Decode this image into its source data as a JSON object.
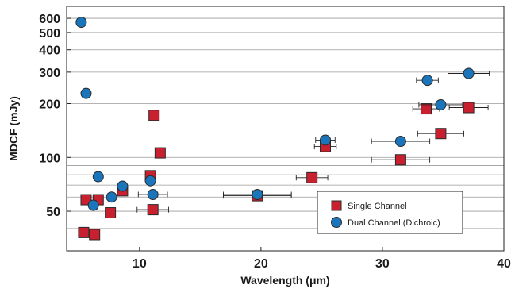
{
  "chart_data": {
    "type": "scatter",
    "title": "",
    "xlabel": "Wavelength (μm)",
    "ylabel": "MDCF (mJy)",
    "xlim": [
      4,
      40
    ],
    "ylim": [
      30,
      700
    ],
    "y_scale": "log",
    "grid": "horizontal",
    "x_ticks": [
      10,
      20,
      30,
      40
    ],
    "y_ticks": [
      50,
      100,
      200,
      300,
      400,
      500,
      600
    ],
    "y_minor_gridlines": [
      40,
      60,
      70,
      80,
      90
    ],
    "legend_position": "bottom-right",
    "series": [
      {
        "name": "Single Channel",
        "marker": "square",
        "color": "#c8202f",
        "points": [
          {
            "x": 5.4,
            "y": 38,
            "xerr": 0
          },
          {
            "x": 5.6,
            "y": 58,
            "xerr": 0
          },
          {
            "x": 6.3,
            "y": 37,
            "xerr": 0
          },
          {
            "x": 6.6,
            "y": 58,
            "xerr": 0
          },
          {
            "x": 7.6,
            "y": 49,
            "xerr": 0
          },
          {
            "x": 8.6,
            "y": 65,
            "xerr": 0
          },
          {
            "x": 11.1,
            "y": 51,
            "xerr": 1.3
          },
          {
            "x": 11.2,
            "y": 172,
            "xerr": 0
          },
          {
            "x": 11.7,
            "y": 106,
            "xerr": 0
          },
          {
            "x": 10.9,
            "y": 79,
            "xerr": 0
          },
          {
            "x": 19.7,
            "y": 61,
            "xerr": 2.8
          },
          {
            "x": 24.2,
            "y": 77,
            "xerr": 1.3
          },
          {
            "x": 25.3,
            "y": 115,
            "xerr": 0.9
          },
          {
            "x": 31.5,
            "y": 97,
            "xerr": 2.4
          },
          {
            "x": 33.6,
            "y": 187,
            "xerr": 1.1
          },
          {
            "x": 34.8,
            "y": 136,
            "xerr": 1.9
          },
          {
            "x": 37.1,
            "y": 190,
            "xerr": 1.6
          }
        ]
      },
      {
        "name": "Dual Channel (Dichroic)",
        "marker": "circle",
        "color": "#1b75bb",
        "points": [
          {
            "x": 5.2,
            "y": 570,
            "xerr": 0
          },
          {
            "x": 5.6,
            "y": 228,
            "xerr": 0
          },
          {
            "x": 6.2,
            "y": 54,
            "xerr": 0
          },
          {
            "x": 6.6,
            "y": 78,
            "xerr": 0
          },
          {
            "x": 7.7,
            "y": 60,
            "xerr": 0
          },
          {
            "x": 8.6,
            "y": 69,
            "xerr": 0
          },
          {
            "x": 10.9,
            "y": 74,
            "xerr": 0
          },
          {
            "x": 11.1,
            "y": 62,
            "xerr": 1.2
          },
          {
            "x": 19.7,
            "y": 62,
            "xerr": 2.8
          },
          {
            "x": 25.3,
            "y": 125,
            "xerr": 0.8
          },
          {
            "x": 31.5,
            "y": 123,
            "xerr": 2.4
          },
          {
            "x": 33.7,
            "y": 270,
            "xerr": 0.9
          },
          {
            "x": 34.8,
            "y": 197,
            "xerr": 1.8
          },
          {
            "x": 37.1,
            "y": 295,
            "xerr": 1.7
          }
        ]
      }
    ]
  }
}
